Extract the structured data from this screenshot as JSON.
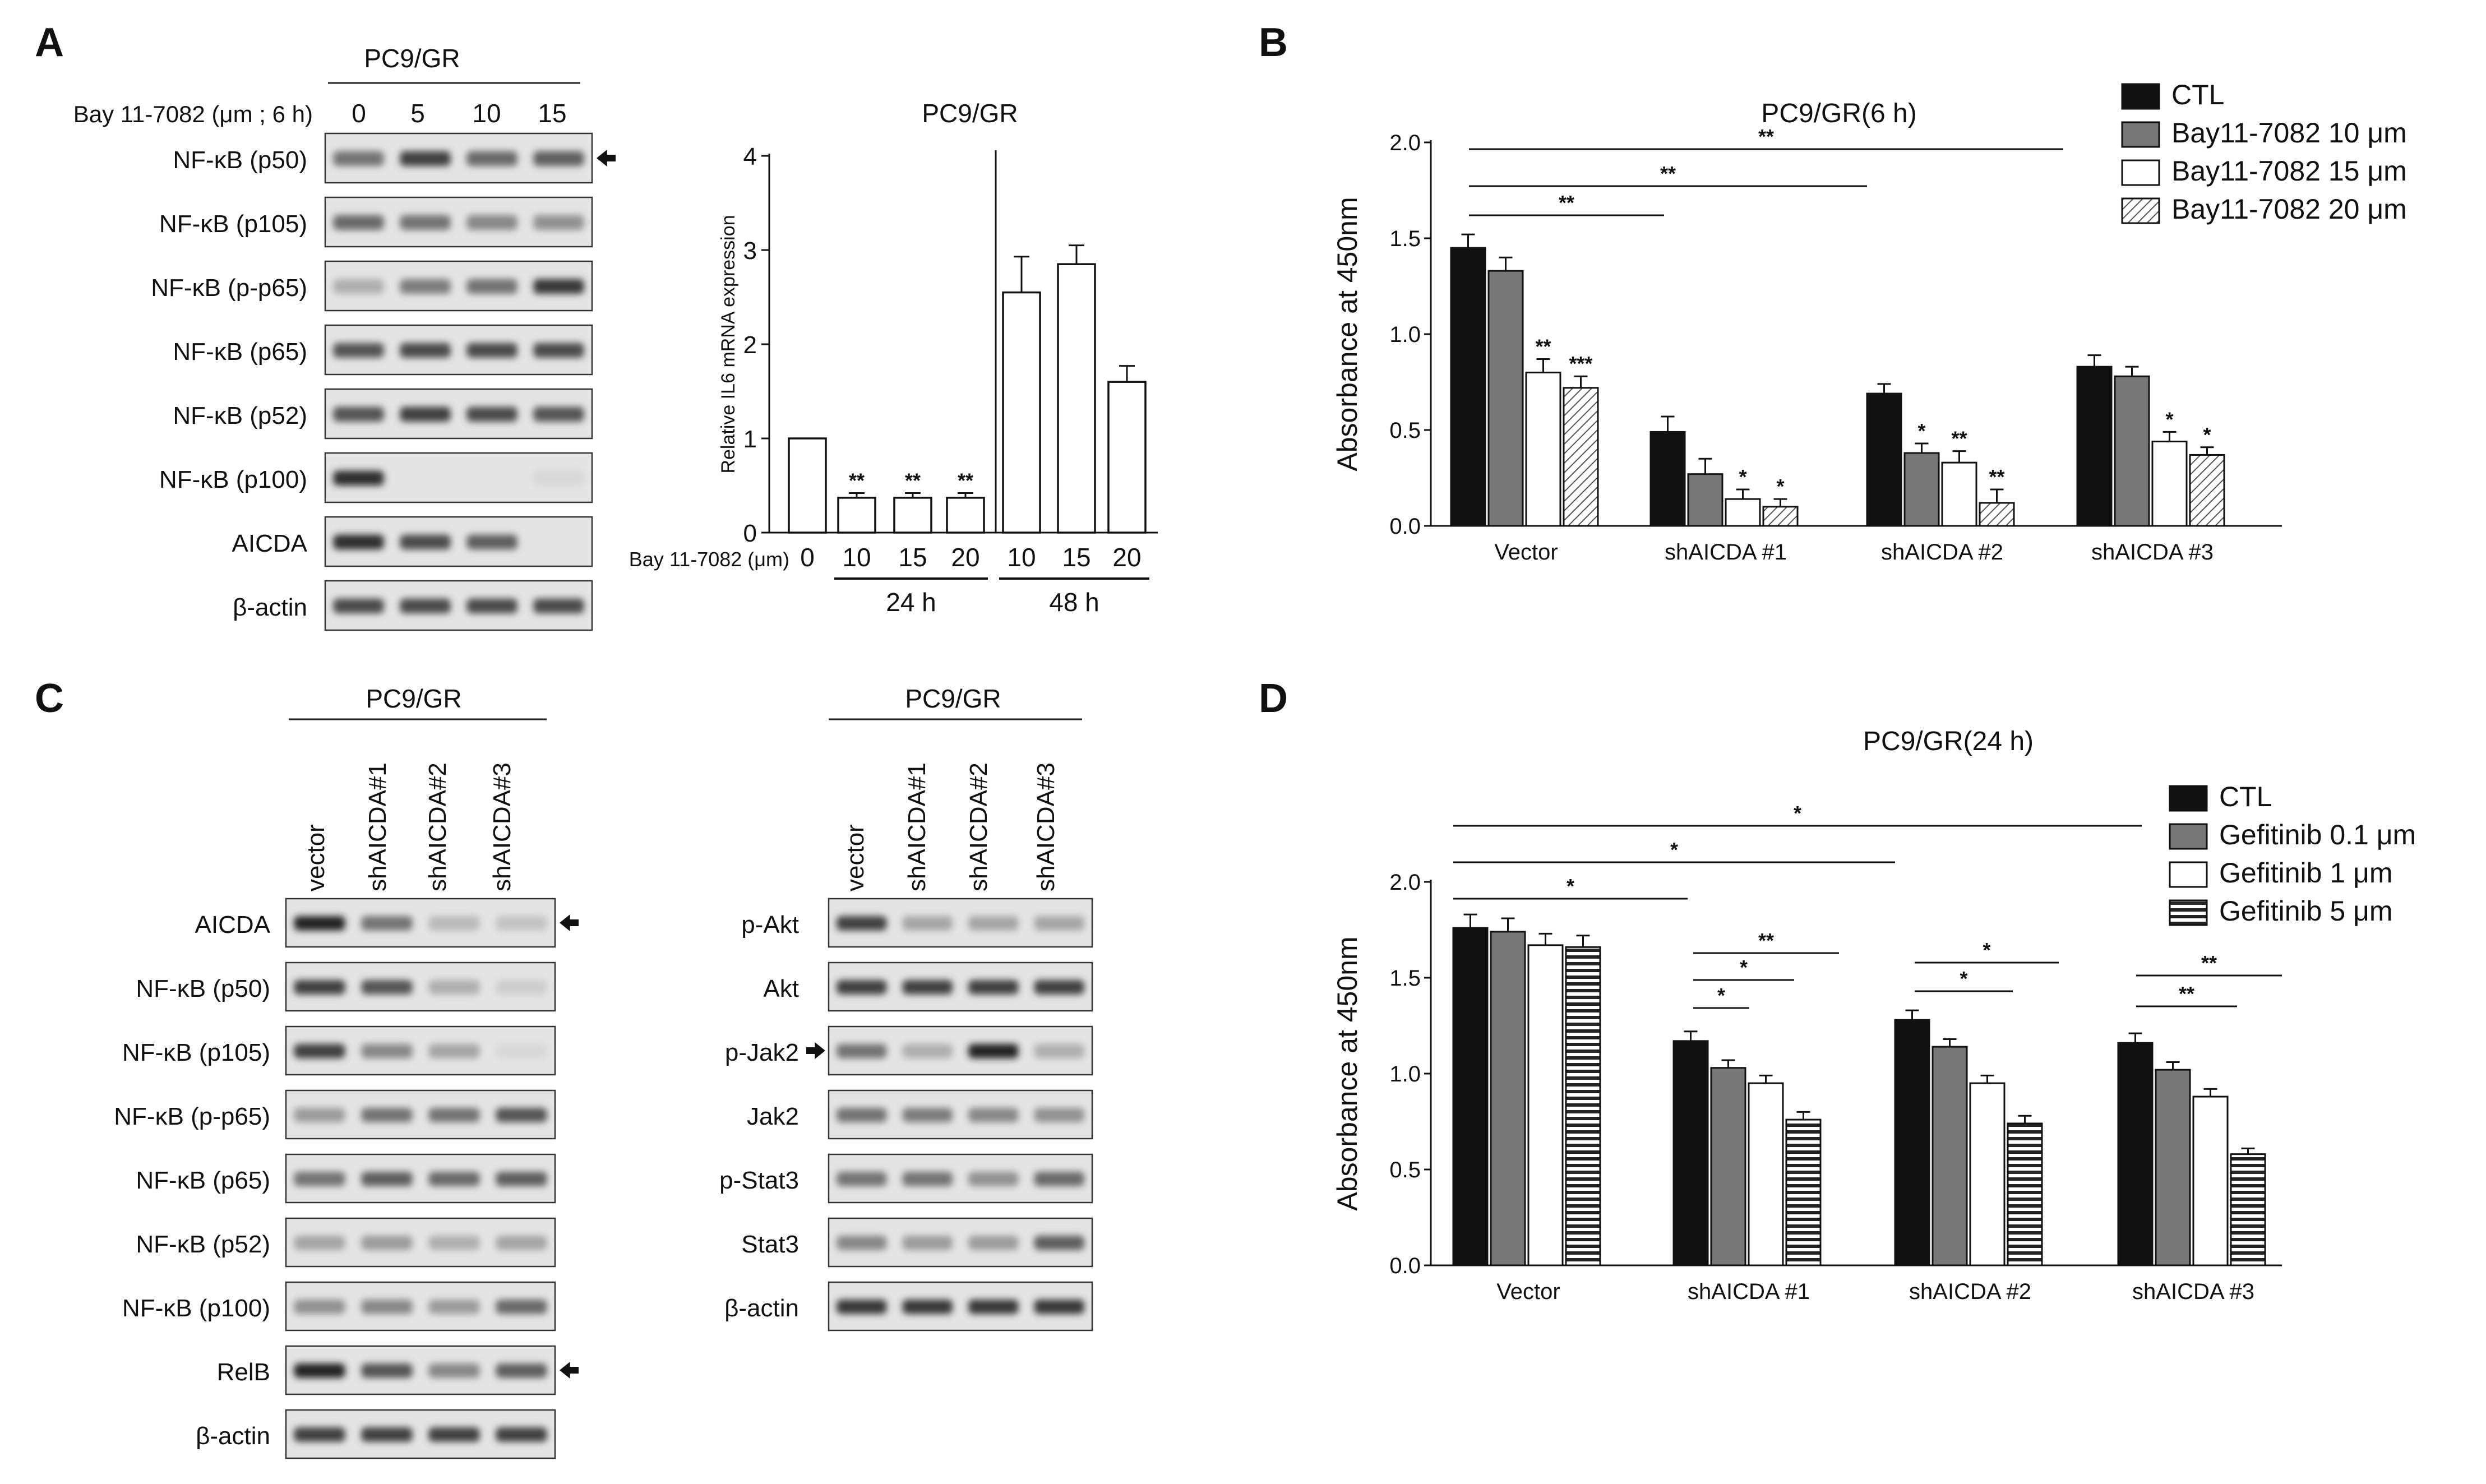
{
  "panel_labels": [
    "A",
    "B",
    "C",
    "D"
  ],
  "panelA": {
    "title": "PC9/GR",
    "dose_label": "Bay 11-7082 (μm ; 6 h)",
    "doses": [
      "0",
      "5",
      "10",
      "15"
    ],
    "blots": [
      "NF-κB (p50)",
      "NF-κB (p105)",
      "NF-κB (p-p65)",
      "NF-κB (p65)",
      "NF-κB (p52)",
      "NF-κB (p100)",
      "AICDA",
      "β-actin"
    ],
    "band_intensity": [
      [
        0.55,
        0.8,
        0.6,
        0.65
      ],
      [
        0.6,
        0.55,
        0.45,
        0.4
      ],
      [
        0.25,
        0.5,
        0.55,
        0.85
      ],
      [
        0.7,
        0.75,
        0.75,
        0.75
      ],
      [
        0.7,
        0.8,
        0.75,
        0.7
      ],
      [
        0.9,
        0.0,
        0.0,
        0.05
      ],
      [
        0.9,
        0.75,
        0.65,
        0.0
      ],
      [
        0.75,
        0.75,
        0.75,
        0.75
      ]
    ],
    "arrow_rows": [
      0
    ]
  },
  "panelC": {
    "left": {
      "title": "PC9/GR",
      "lanes": [
        "vector",
        "shAICDA#1",
        "shAICDA#2",
        "shAICDA#3"
      ],
      "blots": [
        "AICDA",
        "NF-κB (p50)",
        "NF-κB (p105)",
        "NF-κB (p-p65)",
        "NF-κB (p65)",
        "NF-κB (p52)",
        "NF-κB (p100)",
        "RelB",
        "β-actin"
      ],
      "band_intensity": [
        [
          0.95,
          0.55,
          0.2,
          0.15
        ],
        [
          0.8,
          0.7,
          0.25,
          0.1
        ],
        [
          0.8,
          0.45,
          0.3,
          0.05
        ],
        [
          0.35,
          0.55,
          0.55,
          0.7
        ],
        [
          0.55,
          0.65,
          0.6,
          0.65
        ],
        [
          0.3,
          0.35,
          0.25,
          0.3
        ],
        [
          0.4,
          0.45,
          0.35,
          0.6
        ],
        [
          0.95,
          0.7,
          0.45,
          0.65
        ],
        [
          0.8,
          0.8,
          0.8,
          0.8
        ]
      ],
      "arrow_rows": [
        0,
        7
      ]
    },
    "right": {
      "title": "PC9/GR",
      "lanes": [
        "vector",
        "shAICDA#1",
        "shAICDA#2",
        "shAICDA#3"
      ],
      "blots": [
        "p-Akt",
        "Akt",
        "p-Jak2",
        "Jak2",
        "p-Stat3",
        "Stat3",
        "β-actin"
      ],
      "band_intensity": [
        [
          0.8,
          0.3,
          0.3,
          0.3
        ],
        [
          0.8,
          0.8,
          0.8,
          0.8
        ],
        [
          0.55,
          0.25,
          0.95,
          0.25
        ],
        [
          0.55,
          0.5,
          0.45,
          0.4
        ],
        [
          0.55,
          0.55,
          0.4,
          0.6
        ],
        [
          0.45,
          0.35,
          0.35,
          0.65
        ],
        [
          0.85,
          0.85,
          0.85,
          0.85
        ]
      ],
      "arrow_rows": [
        2
      ]
    }
  },
  "chart_data": [
    {
      "id": "A-bar",
      "type": "bar",
      "title": "PC9/GR",
      "xlabel": "Bay 11-7082 (μm)",
      "ylabel": "Relative IL6 mRNA expression",
      "ylim": [
        0,
        4
      ],
      "yticks": [
        "0",
        "1",
        "2",
        "3",
        "4"
      ],
      "x_prefix": "Bay 11-7082 (μm)",
      "categories": [
        "0",
        "10",
        "15",
        "20",
        "10",
        "15",
        "20"
      ],
      "groups": [
        {
          "label": "24 h",
          "from": 1,
          "to": 3
        },
        {
          "label": "48 h",
          "from": 4,
          "to": 6
        }
      ],
      "values": [
        1.0,
        0.37,
        0.37,
        0.37,
        2.55,
        2.85,
        1.6
      ],
      "errors": [
        0.0,
        0.05,
        0.05,
        0.05,
        0.38,
        0.2,
        0.17
      ],
      "annotations": [
        "",
        "**",
        "**",
        "**",
        "",
        "",
        ""
      ]
    },
    {
      "id": "B",
      "type": "bar",
      "title": "PC9/GR(6 h)",
      "ylabel": "Absorbance at 450nm",
      "ylim": [
        0,
        2.0
      ],
      "yticks": [
        "0.0",
        "0.5",
        "1.0",
        "1.5",
        "2.0"
      ],
      "categories": [
        "Vector",
        "shAICDA #1",
        "shAICDA #2",
        "shAICDA #3"
      ],
      "series": [
        {
          "name": "CTL",
          "style": "solid-black",
          "values": [
            1.45,
            0.49,
            0.69,
            0.83
          ],
          "errors": [
            0.07,
            0.08,
            0.05,
            0.06
          ]
        },
        {
          "name": "Bay11-7082 10 μm",
          "style": "gray",
          "values": [
            1.33,
            0.27,
            0.38,
            0.78
          ],
          "errors": [
            0.07,
            0.08,
            0.05,
            0.05
          ]
        },
        {
          "name": "Bay11-7082 15 μm",
          "style": "white",
          "values": [
            0.8,
            0.14,
            0.33,
            0.44
          ],
          "errors": [
            0.07,
            0.05,
            0.06,
            0.05
          ]
        },
        {
          "name": "Bay11-7082 20 μm",
          "style": "diagonal-hatch",
          "values": [
            0.72,
            0.1,
            0.12,
            0.37
          ],
          "errors": [
            0.06,
            0.04,
            0.07,
            0.04
          ]
        }
      ],
      "bar_annotations": [
        [
          "",
          "",
          "**",
          "***"
        ],
        [
          "",
          "",
          "*",
          "*"
        ],
        [
          "",
          "*",
          "**",
          "**"
        ],
        [
          "",
          "",
          "*",
          "*"
        ]
      ],
      "comparison_brackets": [
        {
          "from": "Vector CTL",
          "to": "shAICDA #1 CTL",
          "label": "**"
        },
        {
          "from": "Vector CTL",
          "to": "shAICDA #2 CTL",
          "label": "**"
        },
        {
          "from": "Vector CTL",
          "to": "shAICDA #3 CTL",
          "label": "**"
        }
      ],
      "legend_position": "top-right"
    },
    {
      "id": "D",
      "type": "bar",
      "title": "PC9/GR(24 h)",
      "ylabel": "Absorbance at 450nm",
      "ylim": [
        0,
        2.0
      ],
      "yticks": [
        "0.0",
        "0.5",
        "1.0",
        "1.5",
        "2.0"
      ],
      "categories": [
        "Vector",
        "shAICDA #1",
        "shAICDA #2",
        "shAICDA #3"
      ],
      "series": [
        {
          "name": "CTL",
          "style": "solid-black",
          "values": [
            1.76,
            1.17,
            1.28,
            1.16
          ],
          "errors": [
            0.07,
            0.05,
            0.05,
            0.05
          ]
        },
        {
          "name": "Gefitinib 0.1 μm",
          "style": "gray",
          "values": [
            1.74,
            1.03,
            1.14,
            1.02
          ],
          "errors": [
            0.07,
            0.04,
            0.04,
            0.04
          ]
        },
        {
          "name": "Gefitinib 1 μm",
          "style": "white",
          "values": [
            1.67,
            0.95,
            0.95,
            0.88
          ],
          "errors": [
            0.06,
            0.04,
            0.04,
            0.04
          ]
        },
        {
          "name": "Gefitinib 5 μm",
          "style": "horizontal-stripes",
          "values": [
            1.66,
            0.76,
            0.74,
            0.58
          ],
          "errors": [
            0.06,
            0.04,
            0.04,
            0.03
          ]
        }
      ],
      "comparison_brackets": [
        {
          "from": "Vector CTL",
          "to": "shAICDA #1 CTL",
          "label": "*"
        },
        {
          "from": "Vector CTL",
          "to": "shAICDA #2 CTL",
          "label": "*"
        },
        {
          "from": "Vector CTL",
          "to": "shAICDA #3 CTL",
          "label": "*"
        },
        {
          "from": "shAICDA #1 CTL",
          "to": "shAICDA #1 Gefitinib 0.1 μm",
          "label": "*"
        },
        {
          "from": "shAICDA #1 CTL",
          "to": "shAICDA #1 Gefitinib 1 μm",
          "label": "*"
        },
        {
          "from": "shAICDA #1 CTL",
          "to": "shAICDA #1 Gefitinib 5 μm",
          "label": "**"
        },
        {
          "from": "shAICDA #2 CTL",
          "to": "shAICDA #2 Gefitinib 1 μm",
          "label": "*"
        },
        {
          "from": "shAICDA #2 CTL",
          "to": "shAICDA #2 Gefitinib 5 μm",
          "label": "*"
        },
        {
          "from": "shAICDA #3 CTL",
          "to": "shAICDA #3 Gefitinib 1 μm",
          "label": "**"
        },
        {
          "from": "shAICDA #3 CTL",
          "to": "shAICDA #3 Gefitinib 5 μm",
          "label": "**"
        }
      ],
      "legend_position": "top-right"
    }
  ]
}
